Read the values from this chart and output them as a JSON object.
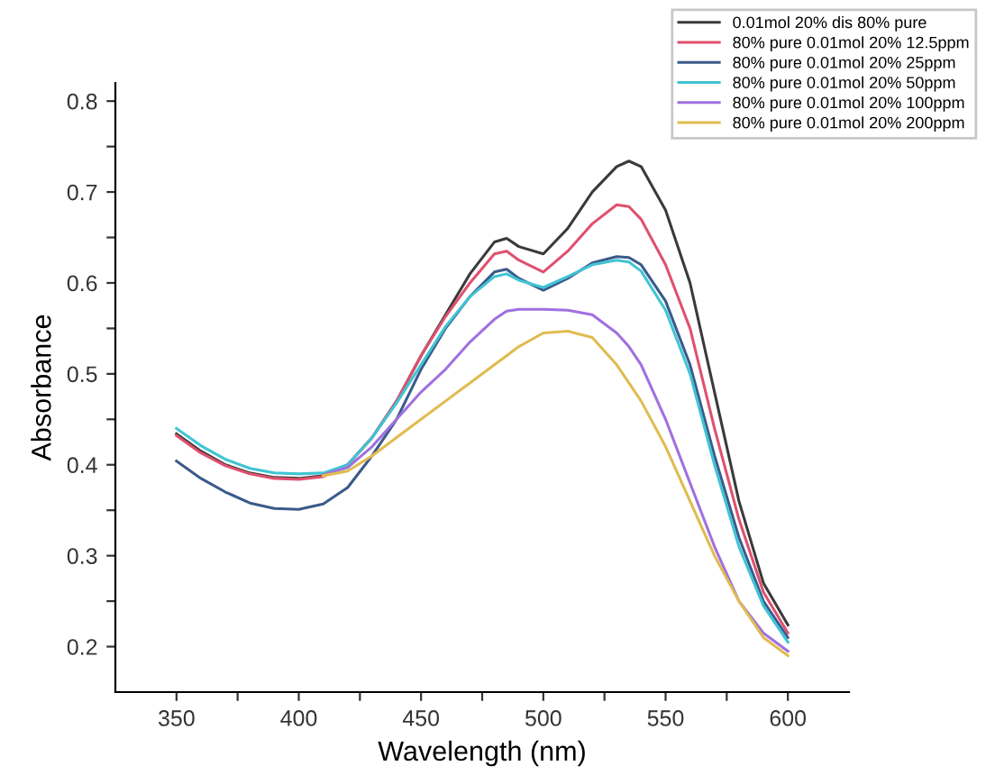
{
  "chart_data": {
    "type": "line",
    "xlabel": "Wavelength (nm)",
    "ylabel": "Absorbance",
    "x": [
      350,
      360,
      370,
      380,
      390,
      400,
      410,
      420,
      430,
      440,
      450,
      460,
      470,
      480,
      485,
      490,
      500,
      510,
      520,
      530,
      535,
      540,
      550,
      560,
      570,
      580,
      590,
      600
    ],
    "series": [
      {
        "name": "0.01mol 20% dis 80% pure",
        "color": "#3a3a3a",
        "values": [
          0.434,
          0.415,
          0.4,
          0.391,
          0.386,
          0.385,
          0.388,
          0.4,
          0.43,
          0.47,
          0.52,
          0.565,
          0.61,
          0.645,
          0.649,
          0.64,
          0.632,
          0.66,
          0.7,
          0.728,
          0.734,
          0.728,
          0.68,
          0.6,
          0.48,
          0.36,
          0.27,
          0.224
        ]
      },
      {
        "name": "80% pure 0.01mol 20% 12.5ppm",
        "color": "#e0506e",
        "values": [
          0.432,
          0.413,
          0.399,
          0.39,
          0.385,
          0.384,
          0.387,
          0.4,
          0.43,
          0.47,
          0.52,
          0.563,
          0.6,
          0.632,
          0.635,
          0.625,
          0.612,
          0.635,
          0.665,
          0.686,
          0.684,
          0.67,
          0.62,
          0.55,
          0.44,
          0.34,
          0.26,
          0.215
        ]
      },
      {
        "name": "80% pure 0.01mol 20% 25ppm",
        "color": "#3a5a8a",
        "values": [
          0.404,
          0.385,
          0.37,
          0.358,
          0.352,
          0.351,
          0.357,
          0.375,
          0.41,
          0.45,
          0.505,
          0.55,
          0.585,
          0.612,
          0.615,
          0.605,
          0.592,
          0.605,
          0.622,
          0.629,
          0.628,
          0.62,
          0.58,
          0.51,
          0.41,
          0.32,
          0.25,
          0.21
        ]
      },
      {
        "name": "80% pure 0.01mol 20% 50ppm",
        "color": "#40c4d4",
        "values": [
          0.44,
          0.421,
          0.406,
          0.396,
          0.391,
          0.39,
          0.391,
          0.4,
          0.43,
          0.468,
          0.51,
          0.552,
          0.585,
          0.607,
          0.61,
          0.603,
          0.595,
          0.607,
          0.62,
          0.625,
          0.623,
          0.613,
          0.57,
          0.5,
          0.4,
          0.31,
          0.245,
          0.205
        ]
      },
      {
        "name": "80% pure 0.01mol 20% 100ppm",
        "color": "#a070e0",
        "values": [
          null,
          null,
          null,
          null,
          null,
          null,
          0.389,
          0.397,
          0.42,
          0.45,
          0.48,
          0.505,
          0.535,
          0.56,
          0.569,
          0.571,
          0.571,
          0.57,
          0.565,
          0.545,
          0.53,
          0.51,
          0.45,
          0.38,
          0.31,
          0.25,
          0.215,
          0.195
        ]
      },
      {
        "name": "80% pure 0.01mol 20% 200ppm",
        "color": "#e0bc50",
        "values": [
          null,
          null,
          null,
          null,
          null,
          null,
          0.388,
          0.393,
          0.41,
          0.43,
          0.45,
          0.47,
          0.49,
          0.51,
          0.52,
          0.53,
          0.545,
          0.547,
          0.54,
          0.51,
          0.49,
          0.47,
          0.42,
          0.36,
          0.3,
          0.25,
          0.21,
          0.19
        ]
      }
    ],
    "xlim": [
      325,
      625
    ],
    "ylim": [
      0.15,
      0.82
    ],
    "xticks": [
      350,
      {
        "value": 375,
        "label": null
      },
      400,
      {
        "value": 425,
        "label": null
      },
      450,
      {
        "value": 475,
        "label": null
      },
      500,
      {
        "value": 525,
        "label": null
      },
      550,
      {
        "value": 575,
        "label": null
      },
      600
    ],
    "yticks": [
      0.2,
      {
        "value": 0.25,
        "label": null
      },
      0.3,
      {
        "value": 0.35,
        "label": null
      },
      0.4,
      {
        "value": 0.45,
        "label": null
      },
      0.5,
      {
        "value": 0.55,
        "label": null
      },
      0.6,
      {
        "value": 0.65,
        "label": null
      },
      0.7,
      {
        "value": 0.75,
        "label": null
      },
      0.8
    ],
    "grid": false,
    "legend": "top right",
    "marker": "none",
    "line_style": "solid"
  }
}
